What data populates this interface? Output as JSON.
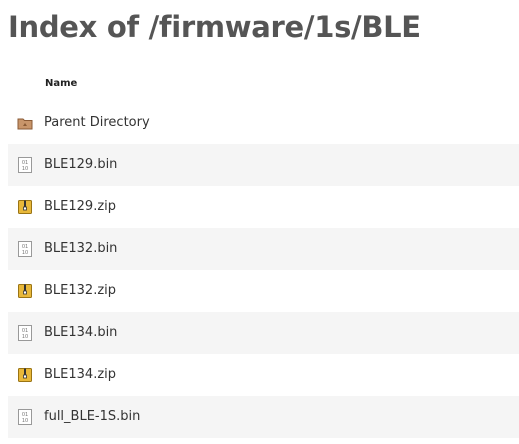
{
  "header": {
    "title": "Index of /firmware/1s/BLE"
  },
  "table": {
    "columns": [
      "Name"
    ],
    "rows": [
      [
        "Parent Directory"
      ],
      [
        "BLE129.bin"
      ],
      [
        "BLE129.zip"
      ],
      [
        "BLE132.bin"
      ],
      [
        "BLE132.zip"
      ],
      [
        "BLE134.bin"
      ],
      [
        "BLE134.zip"
      ],
      [
        "full_BLE-1S.bin"
      ]
    ]
  }
}
